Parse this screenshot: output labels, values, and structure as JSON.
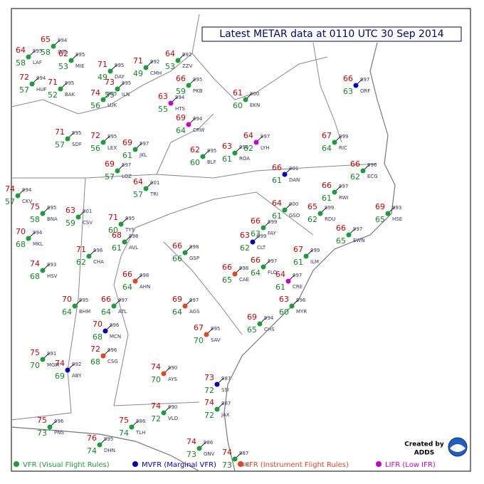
{
  "title": "Latest METAR data at 0110 UTC 30 Sep 2014",
  "legend": [
    {
      "label": "VFR (Visual Flight Rules)",
      "color": "#1a9e3a"
    },
    {
      "label": "MVFR (Marginal VFR)",
      "color": "#0000cc"
    },
    {
      "label": "IFR (Instrument Flight Rules)",
      "color": "#e8421e"
    },
    {
      "label": "LIFR (Low IFR)",
      "color": "#cc00cc"
    }
  ],
  "credit": {
    "line1": "Created by",
    "line2": "ADDS"
  },
  "stations": [
    {
      "id": "IND",
      "temperature": 65,
      "dewpoint": 58,
      "pressure": "994",
      "color": "#1a9e3a"
    },
    {
      "id": "LAF",
      "temperature": 64,
      "dewpoint": 58,
      "pressure": "995",
      "color": "#1a9e3a"
    },
    {
      "id": "MIE",
      "temperature": 62,
      "dewpoint": 53,
      "pressure": "995",
      "color": "#1a9e3a"
    },
    {
      "id": "DAY",
      "temperature": 71,
      "dewpoint": 49,
      "pressure": "995",
      "color": "#1a9e3a"
    },
    {
      "id": "CMH",
      "temperature": 71,
      "dewpoint": 49,
      "pressure": "992",
      "color": "#1a9e3a"
    },
    {
      "id": "ZZV",
      "temperature": 64,
      "dewpoint": 53,
      "pressure": "992",
      "color": "#1a9e3a"
    },
    {
      "id": "PKB",
      "temperature": 66,
      "dewpoint": 59,
      "pressure": "995",
      "color": "#1a9e3a"
    },
    {
      "id": "HUF",
      "temperature": 72,
      "dewpoint": 57,
      "pressure": "994",
      "color": "#1a9e3a"
    },
    {
      "id": "BAK",
      "temperature": 71,
      "dewpoint": 52,
      "pressure": "995",
      "color": "#1a9e3a"
    },
    {
      "id": "LUK",
      "temperature": 74,
      "dewpoint": 56,
      "pressure": "995",
      "color": "#1a9e3a"
    },
    {
      "id": "ILN",
      "temperature": 73,
      "dewpoint": 55,
      "pressure": "995",
      "color": "#1a9e3a"
    },
    {
      "id": "HTS",
      "temperature": 63,
      "dewpoint": 55,
      "pressure": "994",
      "color": "#cc00cc"
    },
    {
      "id": "CRW",
      "temperature": 69,
      "dewpoint": 64,
      "pressure": "994",
      "color": "#cc00cc"
    },
    {
      "id": "EKN",
      "temperature": 61,
      "dewpoint": 60,
      "pressure": "000",
      "color": "#1a9e3a"
    },
    {
      "id": "SDF",
      "temperature": 71,
      "dewpoint": 57,
      "pressure": "995",
      "color": "#1a9e3a"
    },
    {
      "id": "LEX",
      "temperature": 72,
      "dewpoint": 56,
      "pressure": "995",
      "color": "#1a9e3a"
    },
    {
      "id": "JKL",
      "temperature": 69,
      "dewpoint": 61,
      "pressure": "997",
      "color": "#1a9e3a"
    },
    {
      "id": "LOZ",
      "temperature": 69,
      "dewpoint": 57,
      "pressure": "997",
      "color": "#1a9e3a"
    },
    {
      "id": "BLF",
      "temperature": 62,
      "dewpoint": 60,
      "pressure": "995",
      "color": "#1a9e3a"
    },
    {
      "id": "ROA",
      "temperature": 63,
      "dewpoint": 61,
      "pressure": "996",
      "color": "#1a9e3a"
    },
    {
      "id": "LYH",
      "temperature": 64,
      "dewpoint": 62,
      "pressure": "997",
      "color": "#cc00cc"
    },
    {
      "id": "RIC",
      "temperature": 67,
      "dewpoint": 64,
      "pressure": "999",
      "color": "#1a9e3a"
    },
    {
      "id": "ORF",
      "temperature": 66,
      "dewpoint": 63,
      "pressure": "997",
      "color": "#0000cc"
    },
    {
      "id": "CKV",
      "temperature": 74,
      "dewpoint": 57,
      "pressure": "994",
      "color": "#1a9e3a"
    },
    {
      "id": "BNA",
      "temperature": 75,
      "dewpoint": 58,
      "pressure": "995",
      "color": "#1a9e3a"
    },
    {
      "id": "CSV",
      "temperature": 63,
      "dewpoint": 59,
      "pressure": "001",
      "color": "#1a9e3a"
    },
    {
      "id": "TYS",
      "temperature": 71,
      "dewpoint": 60,
      "pressure": "995",
      "color": "#1a9e3a"
    },
    {
      "id": "TRI",
      "temperature": 64,
      "dewpoint": 57,
      "pressure": "001",
      "color": "#1a9e3a"
    },
    {
      "id": "DAN",
      "temperature": 66,
      "dewpoint": 61,
      "pressure": "001",
      "color": "#0000cc"
    },
    {
      "id": "GSO",
      "temperature": 64,
      "dewpoint": 61,
      "pressure": "000",
      "color": "#1a9e3a"
    },
    {
      "id": "RDU",
      "temperature": 65,
      "dewpoint": 62,
      "pressure": "999",
      "color": "#1a9e3a"
    },
    {
      "id": "RWI",
      "temperature": 66,
      "dewpoint": 61,
      "pressure": "997",
      "color": "#1a9e3a"
    },
    {
      "id": "EWN",
      "temperature": 66,
      "dewpoint": 65,
      "pressure": "997",
      "color": "#1a9e3a"
    },
    {
      "id": "HSE",
      "temperature": 69,
      "dewpoint": 65,
      "pressure": "993",
      "color": "#1a9e3a"
    },
    {
      "id": "MKL",
      "temperature": 70,
      "dewpoint": 68,
      "pressure": "994",
      "color": "#1a9e3a"
    },
    {
      "id": "CHA",
      "temperature": 71,
      "dewpoint": 62,
      "pressure": "996",
      "color": "#1a9e3a"
    },
    {
      "id": "AVL",
      "temperature": 68,
      "dewpoint": 61,
      "pressure": "998",
      "color": "#1a9e3a"
    },
    {
      "id": "GSP",
      "temperature": 66,
      "dewpoint": 66,
      "pressure": "998",
      "color": "#1a9e3a"
    },
    {
      "id": "CLT",
      "temperature": 63,
      "dewpoint": 62,
      "pressure": "999",
      "color": "#0000cc"
    },
    {
      "id": "FAY",
      "temperature": 66,
      "dewpoint": 63,
      "pressure": "999",
      "color": "#1a9e3a"
    },
    {
      "id": "ILM",
      "temperature": 67,
      "dewpoint": 61,
      "pressure": "999",
      "color": "#1a9e3a"
    },
    {
      "id": "HSV",
      "temperature": 74,
      "dewpoint": 68,
      "pressure": "993",
      "color": "#1a9e3a"
    },
    {
      "id": "AHN",
      "temperature": 66,
      "dewpoint": 64,
      "pressure": "998",
      "color": "#e8421e"
    },
    {
      "id": "ATL",
      "temperature": 66,
      "dewpoint": 64,
      "pressure": "997",
      "color": "#1a9e3a"
    },
    {
      "id": "CAE",
      "temperature": 66,
      "dewpoint": 65,
      "pressure": "998",
      "color": "#e8421e"
    },
    {
      "id": "FLO",
      "temperature": 66,
      "dewpoint": 64,
      "pressure": "997",
      "color": "#1a9e3a"
    },
    {
      "id": "CRE",
      "temperature": 64,
      "dewpoint": 61,
      "pressure": "997",
      "color": "#cc00cc"
    },
    {
      "id": "MYR",
      "temperature": 63,
      "dewpoint": 60,
      "pressure": "996",
      "color": "#1a9e3a"
    },
    {
      "id": "BHM",
      "temperature": 70,
      "dewpoint": 64,
      "pressure": "995",
      "color": "#1a9e3a"
    },
    {
      "id": "CHS",
      "temperature": 69,
      "dewpoint": 65,
      "pressure": "994",
      "color": "#1a9e3a"
    },
    {
      "id": "AGS",
      "temperature": 69,
      "dewpoint": 64,
      "pressure": "997",
      "color": "#e8421e"
    },
    {
      "id": "MCN",
      "temperature": 70,
      "dewpoint": 68,
      "pressure": "996",
      "color": "#0000cc"
    },
    {
      "id": "SAV",
      "temperature": 67,
      "dewpoint": 70,
      "pressure": "995",
      "color": "#e8421e"
    },
    {
      "id": "MGM",
      "temperature": 75,
      "dewpoint": 70,
      "pressure": "991",
      "color": "#1a9e3a"
    },
    {
      "id": "CSG",
      "temperature": 72,
      "dewpoint": 68,
      "pressure": "996",
      "color": "#e8421e"
    },
    {
      "id": "ABY",
      "temperature": 74,
      "dewpoint": 69,
      "pressure": "992",
      "color": "#0000cc"
    },
    {
      "id": "AYS",
      "temperature": 74,
      "dewpoint": 70,
      "pressure": "990",
      "color": "#e8421e"
    },
    {
      "id": "SSI",
      "temperature": 73,
      "dewpoint": 72,
      "pressure": "987",
      "color": "#0000cc"
    },
    {
      "id": "TLH",
      "temperature": 75,
      "dewpoint": 74,
      "pressure": "986",
      "color": "#1a9e3a"
    },
    {
      "id": "VLD",
      "temperature": 74,
      "dewpoint": 72,
      "pressure": "990",
      "color": "#1a9e3a"
    },
    {
      "id": "JAX",
      "temperature": 74,
      "dewpoint": 72,
      "pressure": "987",
      "color": "#1a9e3a"
    },
    {
      "id": "GNV",
      "temperature": 74,
      "dewpoint": 73,
      "pressure": "986",
      "color": "#1a9e3a"
    },
    {
      "id": "DHN",
      "temperature": 76,
      "dewpoint": 74,
      "pressure": "995",
      "color": "#1a9e3a"
    },
    {
      "id": "PNS",
      "temperature": 75,
      "dewpoint": 73,
      "pressure": "996",
      "color": "#1a9e3a"
    },
    {
      "id": "LEE",
      "temperature": 74,
      "dewpoint": 73,
      "pressure": "987",
      "color": "#1a9e3a"
    },
    {
      "id": "ECG",
      "temperature": 66,
      "dewpoint": 62,
      "pressure": "996",
      "color": "#1a9e3a"
    }
  ]
}
